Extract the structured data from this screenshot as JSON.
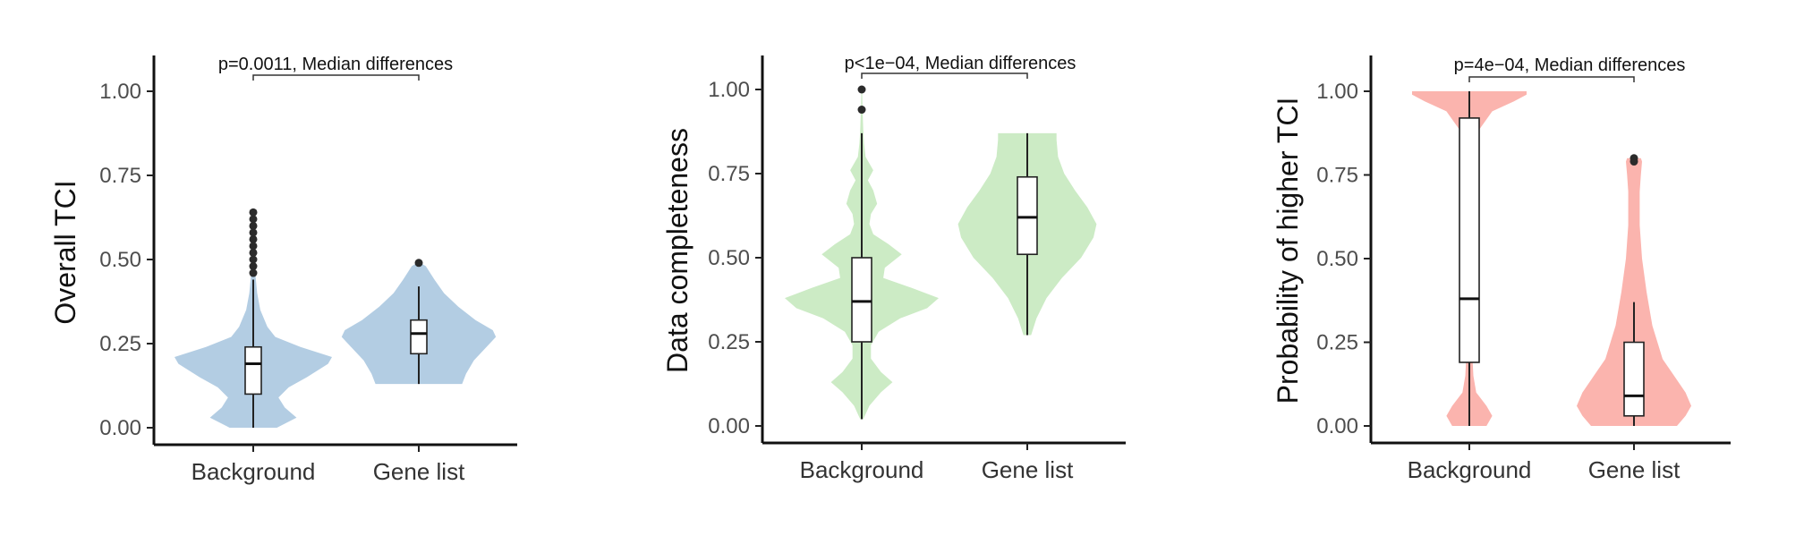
{
  "chart_data": [
    {
      "type": "violin",
      "ylabel": "Overall TCI",
      "categories": [
        "Background",
        "Gene list"
      ],
      "ylim": [
        0,
        1
      ],
      "yticks": [
        "0.00",
        "0.25",
        "0.50",
        "0.75",
        "1.00"
      ],
      "annotation": "p=0.0011, Median differences",
      "fill_color": "#b3cde3",
      "groups": [
        {
          "category": "Background",
          "box": {
            "min": 0.0,
            "q1": 0.1,
            "median": 0.19,
            "q3": 0.24,
            "max": 0.44
          },
          "outliers": [
            0.46,
            0.48,
            0.5,
            0.52,
            0.54,
            0.56,
            0.58,
            0.6,
            0.62,
            0.64
          ],
          "density": [
            [
              0.0,
              0.3
            ],
            [
              0.03,
              0.55
            ],
            [
              0.06,
              0.4
            ],
            [
              0.09,
              0.32
            ],
            [
              0.12,
              0.45
            ],
            [
              0.15,
              0.68
            ],
            [
              0.19,
              0.95
            ],
            [
              0.21,
              1.0
            ],
            [
              0.24,
              0.6
            ],
            [
              0.27,
              0.28
            ],
            [
              0.3,
              0.18
            ],
            [
              0.35,
              0.09
            ],
            [
              0.4,
              0.05
            ],
            [
              0.45,
              0.03
            ],
            [
              0.5,
              0.015
            ],
            [
              0.55,
              0.01
            ],
            [
              0.6,
              0.006
            ],
            [
              0.65,
              0.003
            ]
          ]
        },
        {
          "category": "Gene list",
          "box": {
            "min": 0.13,
            "q1": 0.22,
            "median": 0.28,
            "q3": 0.32,
            "max": 0.42
          },
          "outliers": [
            0.49
          ],
          "density": [
            [
              0.13,
              0.55
            ],
            [
              0.16,
              0.6
            ],
            [
              0.2,
              0.7
            ],
            [
              0.24,
              0.86
            ],
            [
              0.27,
              0.98
            ],
            [
              0.29,
              0.94
            ],
            [
              0.32,
              0.72
            ],
            [
              0.36,
              0.5
            ],
            [
              0.4,
              0.32
            ],
            [
              0.44,
              0.2
            ],
            [
              0.48,
              0.09
            ],
            [
              0.49,
              0.02
            ]
          ]
        }
      ]
    },
    {
      "type": "violin",
      "ylabel": "Data completeness",
      "categories": [
        "Background",
        "Gene list"
      ],
      "ylim": [
        0,
        1
      ],
      "yticks": [
        "0.00",
        "0.25",
        "0.50",
        "0.75",
        "1.00"
      ],
      "annotation": "p<1e−04, Median differences",
      "fill_color": "#ccebc5",
      "groups": [
        {
          "category": "Background",
          "box": {
            "min": 0.02,
            "q1": 0.25,
            "median": 0.37,
            "q3": 0.5,
            "max": 0.87
          },
          "outliers": [
            0.94,
            1.0
          ],
          "density": [
            [
              0.02,
              0.02
            ],
            [
              0.06,
              0.1
            ],
            [
              0.1,
              0.25
            ],
            [
              0.13,
              0.4
            ],
            [
              0.16,
              0.25
            ],
            [
              0.2,
              0.12
            ],
            [
              0.24,
              0.12
            ],
            [
              0.28,
              0.22
            ],
            [
              0.32,
              0.5
            ],
            [
              0.35,
              0.85
            ],
            [
              0.38,
              1.0
            ],
            [
              0.41,
              0.65
            ],
            [
              0.44,
              0.28
            ],
            [
              0.47,
              0.3
            ],
            [
              0.51,
              0.52
            ],
            [
              0.54,
              0.35
            ],
            [
              0.57,
              0.15
            ],
            [
              0.6,
              0.1
            ],
            [
              0.63,
              0.12
            ],
            [
              0.66,
              0.2
            ],
            [
              0.7,
              0.15
            ],
            [
              0.73,
              0.08
            ],
            [
              0.76,
              0.15
            ],
            [
              0.8,
              0.05
            ],
            [
              0.84,
              0.03
            ],
            [
              0.88,
              0.02
            ],
            [
              0.94,
              0.01
            ],
            [
              1.0,
              0.005
            ]
          ]
        },
        {
          "category": "Gene list",
          "box": {
            "min": 0.27,
            "q1": 0.51,
            "median": 0.62,
            "q3": 0.74,
            "max": 0.87
          },
          "outliers": [],
          "density": [
            [
              0.27,
              0.05
            ],
            [
              0.32,
              0.12
            ],
            [
              0.38,
              0.25
            ],
            [
              0.44,
              0.45
            ],
            [
              0.5,
              0.7
            ],
            [
              0.56,
              0.86
            ],
            [
              0.6,
              0.9
            ],
            [
              0.65,
              0.78
            ],
            [
              0.7,
              0.62
            ],
            [
              0.75,
              0.48
            ],
            [
              0.8,
              0.4
            ],
            [
              0.85,
              0.38
            ],
            [
              0.87,
              0.38
            ]
          ]
        }
      ]
    },
    {
      "type": "violin",
      "ylabel": "Probability of higher TCI",
      "categories": [
        "Background",
        "Gene list"
      ],
      "ylim": [
        0,
        1
      ],
      "yticks": [
        "0.00",
        "0.25",
        "0.50",
        "0.75",
        "1.00"
      ],
      "annotation": "p=4e−04, Median differences",
      "fill_color": "#fbb4ae",
      "groups": [
        {
          "category": "Background",
          "box": {
            "min": 0.0,
            "q1": 0.19,
            "median": 0.38,
            "q3": 0.92,
            "max": 1.0
          },
          "outliers": [],
          "density": [
            [
              0.0,
              0.3
            ],
            [
              0.03,
              0.4
            ],
            [
              0.06,
              0.3
            ],
            [
              0.1,
              0.12
            ],
            [
              0.15,
              0.07
            ],
            [
              0.25,
              0.04
            ],
            [
              0.4,
              0.03
            ],
            [
              0.55,
              0.03
            ],
            [
              0.7,
              0.04
            ],
            [
              0.8,
              0.07
            ],
            [
              0.88,
              0.15
            ],
            [
              0.94,
              0.4
            ],
            [
              0.97,
              0.78
            ],
            [
              0.99,
              1.0
            ],
            [
              1.0,
              1.0
            ]
          ]
        },
        {
          "category": "Gene list",
          "box": {
            "min": 0.0,
            "q1": 0.03,
            "median": 0.09,
            "q3": 0.25,
            "max": 0.37
          },
          "outliers": [
            0.79,
            0.8
          ],
          "density": [
            [
              0.0,
              0.75
            ],
            [
              0.03,
              0.9
            ],
            [
              0.06,
              1.0
            ],
            [
              0.1,
              0.9
            ],
            [
              0.15,
              0.7
            ],
            [
              0.2,
              0.5
            ],
            [
              0.3,
              0.32
            ],
            [
              0.4,
              0.22
            ],
            [
              0.5,
              0.14
            ],
            [
              0.6,
              0.1
            ],
            [
              0.7,
              0.1
            ],
            [
              0.75,
              0.12
            ],
            [
              0.79,
              0.14
            ],
            [
              0.8,
              0.12
            ]
          ]
        }
      ]
    }
  ]
}
